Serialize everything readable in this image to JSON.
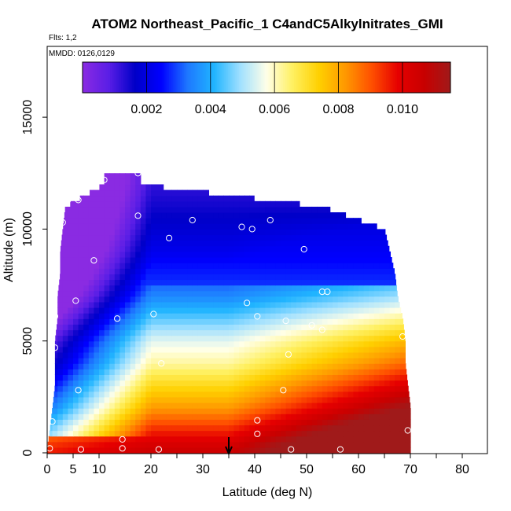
{
  "chart_data": {
    "type": "heatmap",
    "title": "ATOM2 Northeast_Pacific_1 C4andC5Alkylnitrates_GMI",
    "subtitle_flights": "Flts: 1,2",
    "subtitle_dates": "MMDD: 0126,0129",
    "xlabel": "Latitude (deg N)",
    "ylabel": "Altitude (m)",
    "xlim": [
      -1,
      85
    ],
    "ylim": [
      0,
      17500
    ],
    "xticks": [
      0,
      5,
      10,
      20,
      30,
      40,
      50,
      60,
      70,
      80
    ],
    "yticks": [
      0,
      5000,
      10000,
      15000
    ],
    "colorbar": {
      "range": [
        0.0,
        0.0115
      ],
      "ticks": [
        0.002,
        0.004,
        0.006,
        0.008,
        0.01
      ],
      "tick_labels": [
        "0.002",
        "0.004",
        "0.006",
        "0.008",
        "0.010"
      ],
      "colors": [
        "#8a2be2",
        "#5a1ee6",
        "#0000c8",
        "#0000ff",
        "#1e78ff",
        "#20b4ff",
        "#a0e0ff",
        "#ffffe8",
        "#fff060",
        "#ffd000",
        "#ff9800",
        "#ff5000",
        "#e60000",
        "#c80000",
        "#a01a1a"
      ]
    },
    "arrow_latitude": 35,
    "profile": [
      {
        "alt": 200,
        "value": 0.0105,
        "lat_start": 0,
        "lat_end": 70
      },
      {
        "alt": 1000,
        "value": 0.0095,
        "lat_start": 0.5,
        "lat_end": 70
      },
      {
        "alt": 2000,
        "value": 0.0082,
        "lat_start": 1,
        "lat_end": 70
      },
      {
        "alt": 3000,
        "value": 0.0072,
        "lat_start": 1.5,
        "lat_end": 69.5
      },
      {
        "alt": 4000,
        "value": 0.0062,
        "lat_start": 1.5,
        "lat_end": 69
      },
      {
        "alt": 5000,
        "value": 0.0055,
        "lat_start": 1.5,
        "lat_end": 69
      },
      {
        "alt": 6000,
        "value": 0.0045,
        "lat_start": 2,
        "lat_end": 68.5
      },
      {
        "alt": 7000,
        "value": 0.0035,
        "lat_start": 2,
        "lat_end": 67.5
      },
      {
        "alt": 8000,
        "value": 0.0028,
        "lat_start": 2.5,
        "lat_end": 67
      },
      {
        "alt": 9000,
        "value": 0.0022,
        "lat_start": 2.5,
        "lat_end": 66
      },
      {
        "alt": 10000,
        "value": 0.0018,
        "lat_start": 3,
        "lat_end": 65
      },
      {
        "alt": 11000,
        "value": 0.0015,
        "lat_start": 3.5,
        "lat_end": 53
      },
      {
        "alt": 12000,
        "value": 0.0012,
        "lat_start": 11,
        "lat_end": 18
      }
    ],
    "sample_points": [
      [
        0.5,
        200
      ],
      [
        6.5,
        150
      ],
      [
        14.5,
        200
      ],
      [
        21.5,
        150
      ],
      [
        47,
        150
      ],
      [
        56.5,
        150
      ],
      [
        14.5,
        600
      ],
      [
        40.5,
        850
      ],
      [
        69.5,
        1000
      ],
      [
        1,
        1400
      ],
      [
        40.5,
        1450
      ],
      [
        6,
        2800
      ],
      [
        45.5,
        2800
      ],
      [
        22,
        4000
      ],
      [
        46.5,
        4400
      ],
      [
        1.5,
        4700
      ],
      [
        53,
        5500
      ],
      [
        51,
        5700
      ],
      [
        46,
        5900
      ],
      [
        68.5,
        5200
      ],
      [
        13.5,
        6000
      ],
      [
        40.5,
        6100
      ],
      [
        20.5,
        6200
      ],
      [
        1.5,
        6100
      ],
      [
        38.5,
        6700
      ],
      [
        5.5,
        6800
      ],
      [
        53,
        7200
      ],
      [
        54,
        7200
      ],
      [
        9,
        8600
      ],
      [
        49.5,
        9100
      ],
      [
        23.5,
        9600
      ],
      [
        3,
        10300
      ],
      [
        37.5,
        10100
      ],
      [
        39.5,
        10000
      ],
      [
        43,
        10400
      ],
      [
        64.5,
        10300
      ],
      [
        28,
        10400
      ],
      [
        17.5,
        10600
      ],
      [
        4,
        11300
      ],
      [
        6,
        11300
      ],
      [
        11,
        12200
      ],
      [
        17.5,
        12500
      ]
    ]
  }
}
